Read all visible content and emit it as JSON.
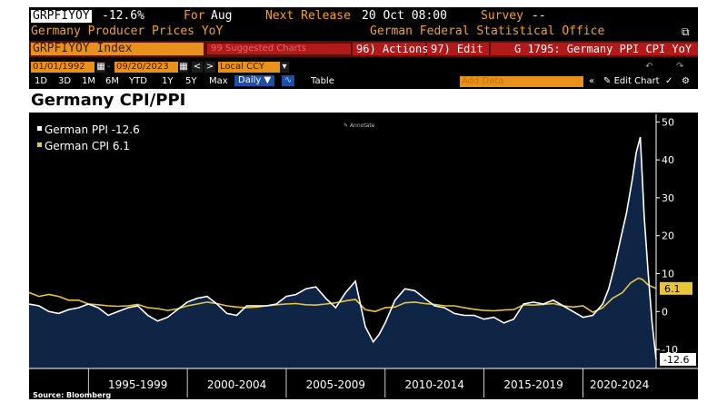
{
  "terminal": {
    "ticker": "GRPFIYOY",
    "last_value": "-12.6%",
    "for_label": "For",
    "for_period": "Aug",
    "next_release_label": "Next Release",
    "next_release_value": "20 Oct 08:00",
    "survey_label": "Survey",
    "survey_value": "--",
    "series_name": "Germany Producer Prices YoY",
    "source_name": "German Federal Statistical Office",
    "security_field": "GRPFIYOY Index",
    "suggested_text": "99 Suggested Charts",
    "actions_label": "96) Actions",
    "edit_label": "97) Edit",
    "chart_ref": "G 1795: Germany PPI CPI YoY",
    "start_date": "01/01/1992",
    "end_date": "09/20/2023",
    "currency": "Local CCY",
    "ranges": [
      "1D",
      "3D",
      "1M",
      "6M",
      "YTD",
      "1Y",
      "5Y",
      "Max"
    ],
    "frequency": "Daily",
    "table_label": "Table",
    "add_data_placeholder": "Add Data",
    "edit_chart_label": "Edit Chart",
    "annotate_label": "Annotate",
    "footer_source": "Source: Bloomberg",
    "colors": {
      "amber": "#f7a21b",
      "ppi": "#ffffff",
      "cpi": "#e8c53a",
      "area": "#0f2546"
    }
  },
  "chart_data": {
    "type": "area",
    "title": "Germany CPI/PPI",
    "xlabel": "",
    "ylabel": "",
    "x_range": [
      1992.0,
      2023.7
    ],
    "ylim": [
      -15,
      52
    ],
    "y_ticks": [
      50,
      40,
      30,
      20,
      10,
      0,
      -10
    ],
    "x_tick_labels": [
      "1995-1999",
      "2000-2004",
      "2005-2009",
      "2010-2014",
      "2015-2019",
      "2020-2024"
    ],
    "legend": [
      "German PPI -12.6",
      "German CPI 6.1"
    ],
    "last_value_labels": {
      "cpi": "6.1",
      "ppi": "-12.6"
    },
    "series": [
      {
        "name": "German PPI",
        "x": [
          1992.0,
          1992.5,
          1993.0,
          1993.5,
          1994.0,
          1994.5,
          1995.0,
          1995.5,
          1996.0,
          1996.5,
          1997.0,
          1997.5,
          1998.0,
          1998.5,
          1999.0,
          1999.5,
          2000.0,
          2000.5,
          2001.0,
          2001.5,
          2002.0,
          2002.5,
          2003.0,
          2003.5,
          2004.0,
          2004.5,
          2005.0,
          2005.5,
          2006.0,
          2006.5,
          2007.0,
          2007.5,
          2008.0,
          2008.5,
          2009.0,
          2009.4,
          2009.7,
          2010.0,
          2010.5,
          2011.0,
          2011.5,
          2012.0,
          2012.5,
          2013.0,
          2013.5,
          2014.0,
          2014.5,
          2015.0,
          2015.5,
          2016.0,
          2016.5,
          2017.0,
          2017.5,
          2018.0,
          2018.5,
          2019.0,
          2019.5,
          2020.0,
          2020.5,
          2021.0,
          2021.3,
          2021.6,
          2021.9,
          2022.2,
          2022.5,
          2022.7,
          2022.9,
          2023.1,
          2023.3,
          2023.5,
          2023.7
        ],
        "values": [
          2.0,
          1.5,
          0.0,
          -0.5,
          0.5,
          1.0,
          2.0,
          1.0,
          -1.0,
          0.0,
          1.0,
          1.5,
          -1.0,
          -2.5,
          -1.5,
          0.5,
          2.5,
          3.5,
          4.0,
          2.0,
          -0.5,
          -1.0,
          1.5,
          1.5,
          1.5,
          2.0,
          4.0,
          4.5,
          6.0,
          6.5,
          3.5,
          1.0,
          5.0,
          8.0,
          -4.0,
          -8.0,
          -6.0,
          -3.0,
          3.0,
          6.0,
          5.5,
          3.5,
          1.5,
          1.0,
          -0.5,
          -1.0,
          -1.0,
          -2.0,
          -1.5,
          -3.0,
          -2.0,
          2.0,
          2.5,
          2.0,
          3.0,
          1.5,
          0.0,
          -1.5,
          -1.0,
          2.0,
          6.0,
          12.0,
          19.0,
          26.0,
          35.0,
          42.0,
          46.0,
          25.0,
          10.0,
          -3.0,
          -12.6
        ]
      },
      {
        "name": "German CPI",
        "x": [
          1992.0,
          1992.5,
          1993.0,
          1993.5,
          1994.0,
          1994.5,
          1995.0,
          1995.5,
          1996.0,
          1996.5,
          1997.0,
          1997.5,
          1998.0,
          1998.5,
          1999.0,
          1999.5,
          2000.0,
          2000.5,
          2001.0,
          2001.5,
          2002.0,
          2002.5,
          2003.0,
          2003.5,
          2004.0,
          2004.5,
          2005.0,
          2005.5,
          2006.0,
          2006.5,
          2007.0,
          2007.5,
          2008.0,
          2008.5,
          2009.0,
          2009.5,
          2010.0,
          2010.5,
          2011.0,
          2011.5,
          2012.0,
          2012.5,
          2013.0,
          2013.5,
          2014.0,
          2014.5,
          2015.0,
          2015.5,
          2016.0,
          2016.5,
          2017.0,
          2017.5,
          2018.0,
          2018.5,
          2019.0,
          2019.5,
          2020.0,
          2020.5,
          2021.0,
          2021.5,
          2022.0,
          2022.4,
          2022.8,
          2023.0,
          2023.3,
          2023.7
        ],
        "values": [
          5.0,
          4.0,
          4.5,
          4.0,
          3.0,
          3.0,
          2.0,
          1.8,
          1.5,
          1.4,
          1.5,
          1.9,
          1.0,
          0.8,
          0.3,
          0.7,
          1.5,
          2.0,
          2.5,
          2.1,
          1.5,
          1.2,
          1.0,
          1.2,
          1.5,
          1.8,
          2.0,
          2.1,
          1.8,
          1.7,
          2.0,
          2.3,
          2.8,
          3.2,
          0.5,
          0.0,
          1.0,
          1.2,
          2.3,
          2.5,
          2.1,
          1.9,
          1.5,
          1.5,
          1.0,
          0.6,
          0.3,
          0.2,
          0.4,
          0.5,
          1.8,
          1.7,
          1.9,
          2.1,
          1.5,
          1.2,
          1.5,
          -0.2,
          1.0,
          3.5,
          5.0,
          7.5,
          8.8,
          8.5,
          7.0,
          6.1
        ]
      }
    ]
  }
}
